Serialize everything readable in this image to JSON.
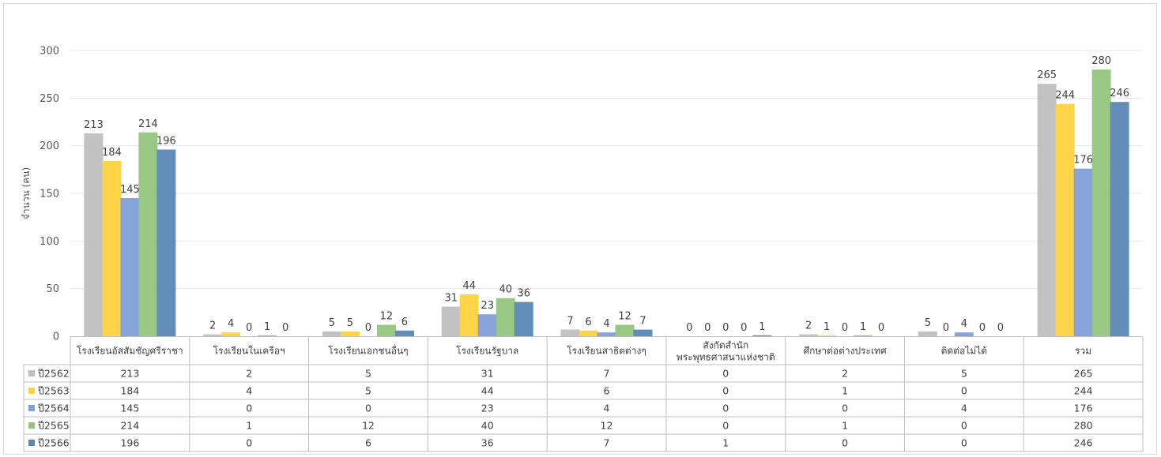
{
  "chart_data": {
    "type": "bar",
    "title": "",
    "xlabel": "",
    "ylabel": "จำนวน (คน)",
    "ylim": [
      0,
      300
    ],
    "yticks": [
      0,
      50,
      100,
      150,
      200,
      250,
      300
    ],
    "grid": true,
    "legend": "data-table",
    "categories": [
      "โรงเรียนอัสสัมชัญศรีราชา",
      "โรงเรียนในเครือฯ",
      "โรงเรียนเอกชนอื่นๆ",
      "โรงเรียนรัฐบาล",
      "โรงเรียนสาธิตต่างๆ",
      [
        "สังกัดสำนัก",
        "พระพุทธศาสนาแห่งชาติ"
      ],
      "ศึกษาต่อต่างประเทศ",
      "ติดต่อไม่ได้",
      "รวม"
    ],
    "series": [
      {
        "name": "ปี2562",
        "color": "#bfbfbf",
        "values": [
          213,
          2,
          5,
          31,
          7,
          0,
          2,
          5,
          265
        ]
      },
      {
        "name": "ปี2563",
        "color": "#ffd23f",
        "values": [
          184,
          4,
          5,
          44,
          6,
          0,
          1,
          0,
          244
        ]
      },
      {
        "name": "ปี2564",
        "color": "#7f9fd8",
        "values": [
          145,
          0,
          0,
          23,
          4,
          0,
          0,
          4,
          176
        ]
      },
      {
        "name": "ปี2565",
        "color": "#93c47d",
        "values": [
          214,
          1,
          12,
          40,
          12,
          0,
          1,
          0,
          280
        ]
      },
      {
        "name": "ปี2566",
        "color": "#5b87b5",
        "values": [
          196,
          0,
          6,
          36,
          7,
          1,
          0,
          0,
          246
        ]
      }
    ]
  }
}
